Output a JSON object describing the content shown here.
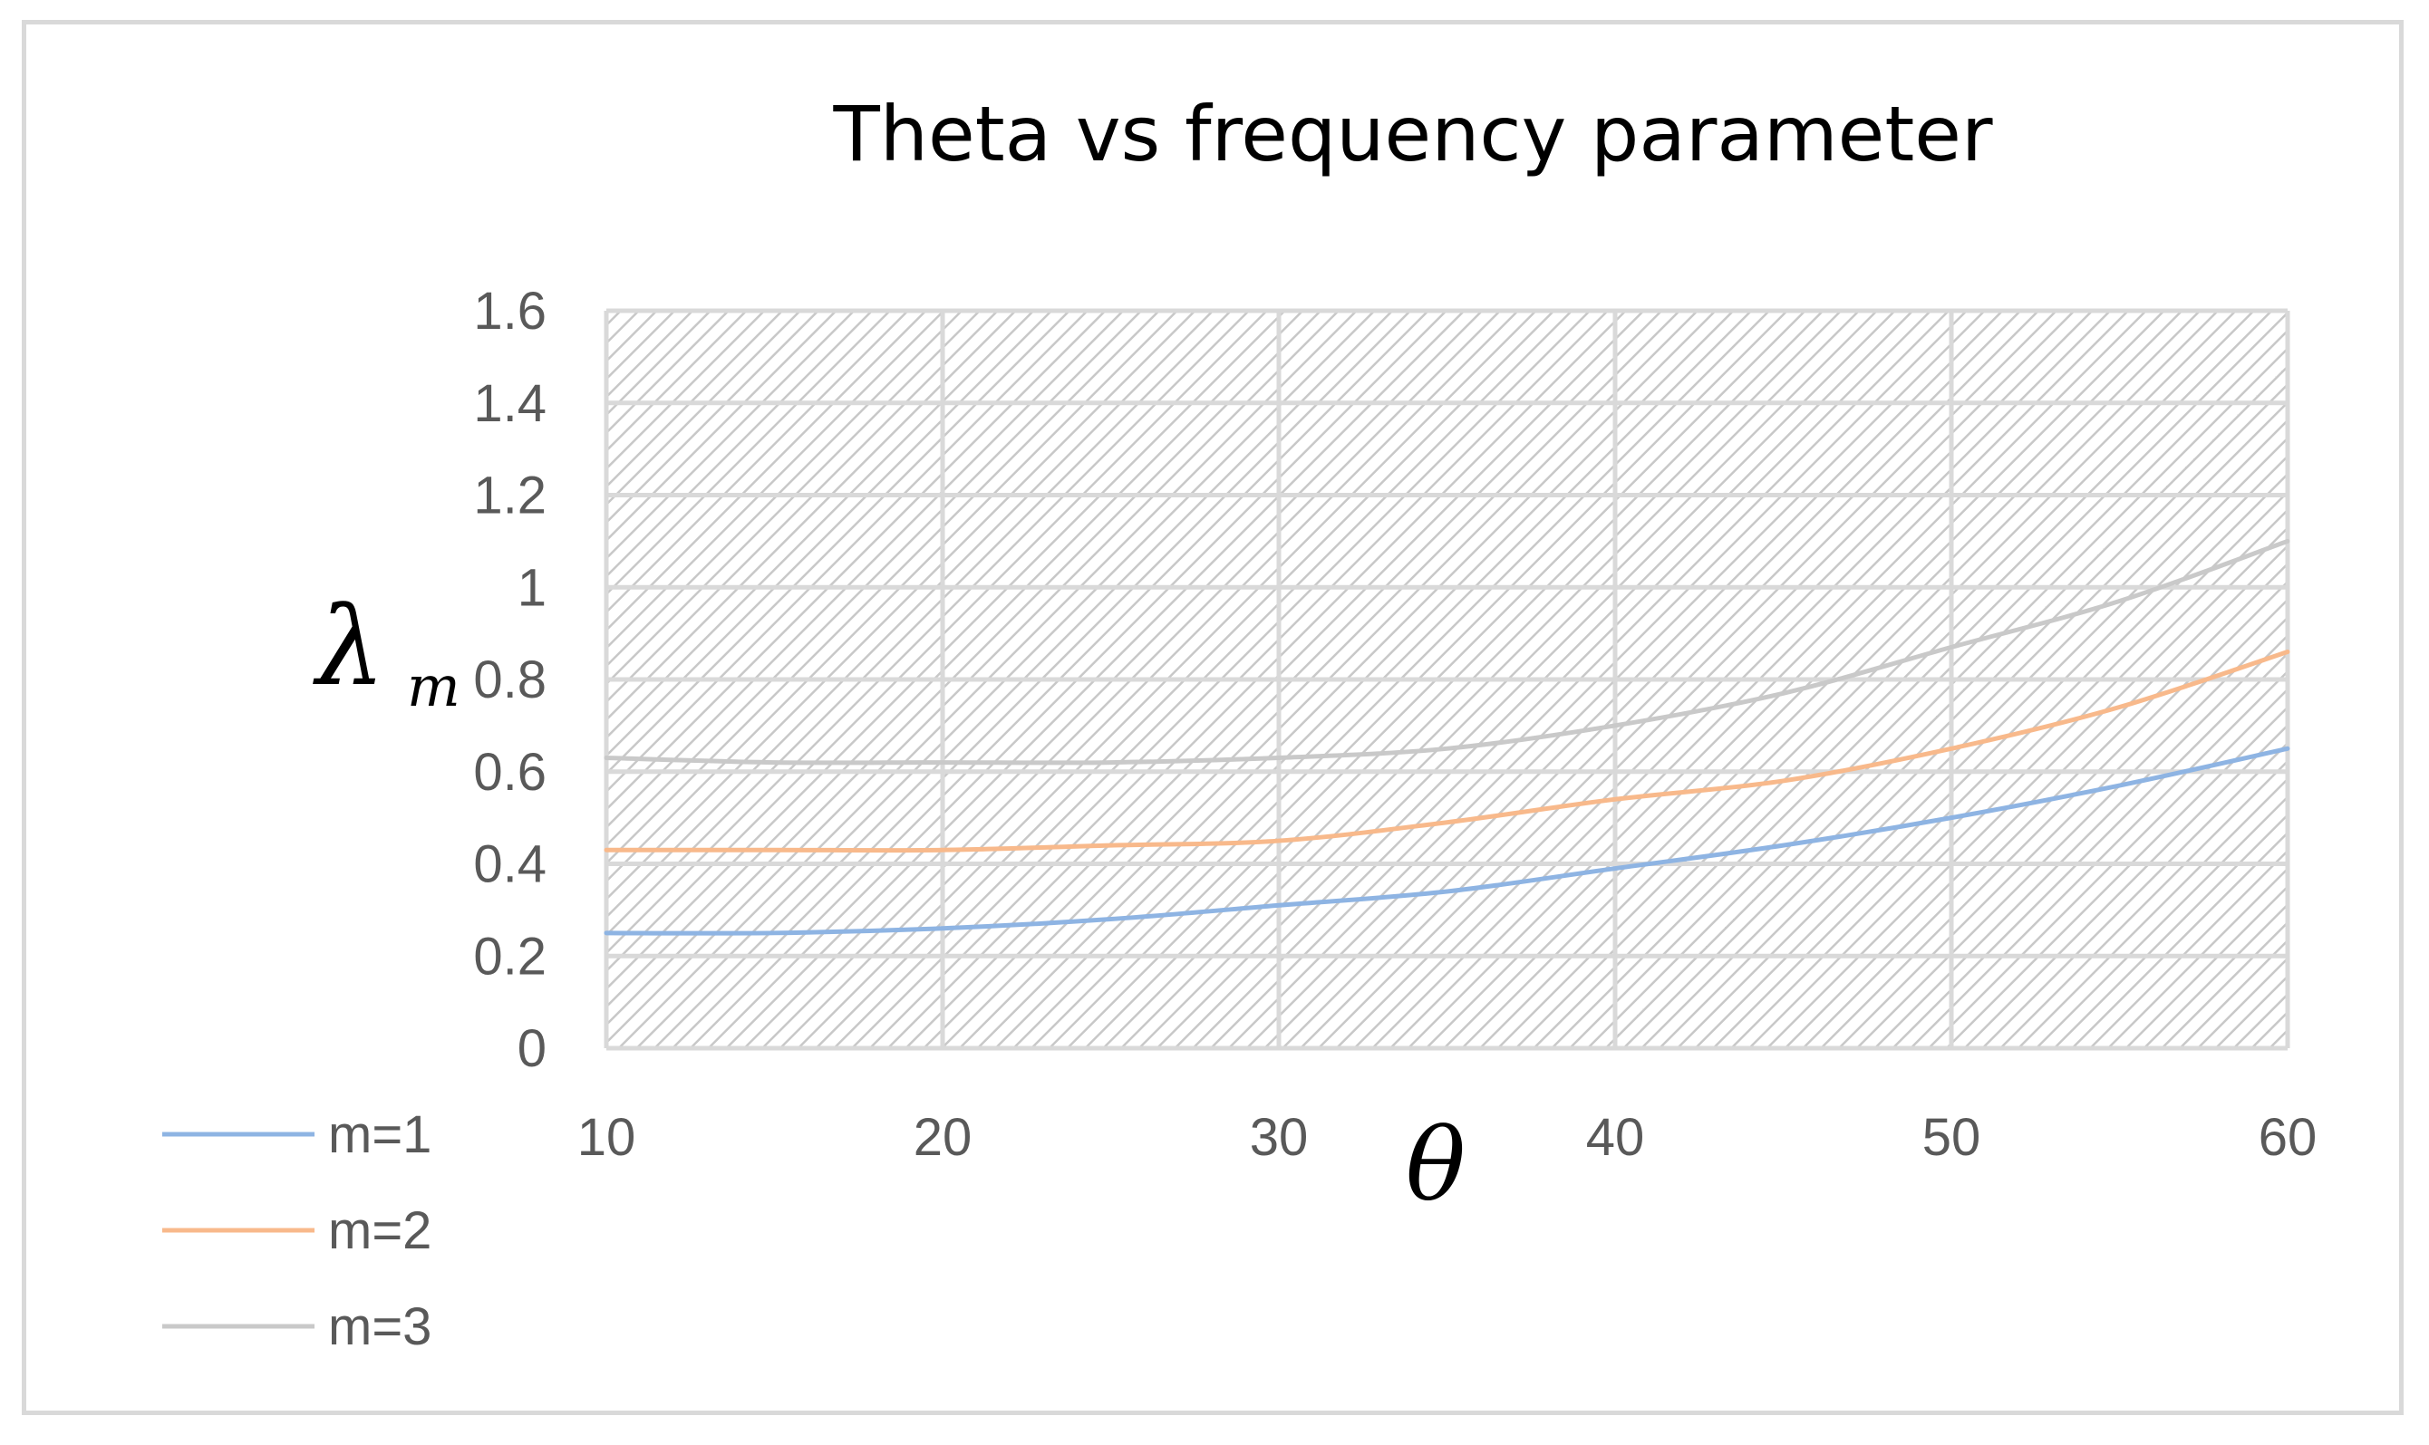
{
  "chart_data": {
    "type": "line",
    "title": "Theta vs frequency parameter",
    "xlabel": "θ",
    "ylabel": "λ",
    "ylabel_subscript": "m",
    "x": [
      10,
      15,
      20,
      25,
      30,
      35,
      40,
      45,
      50,
      55,
      60
    ],
    "x_ticks": [
      "10",
      "20",
      "30",
      "40",
      "50",
      "60"
    ],
    "y_ticks": [
      "0",
      "0.2",
      "0.4",
      "0.6",
      "0.8",
      "1",
      "1.2",
      "1.4",
      "1.6"
    ],
    "xlim": [
      10,
      60
    ],
    "ylim": [
      0,
      1.6
    ],
    "grid": true,
    "plot_background": "hatched",
    "legend_position": "bottom-left",
    "series": [
      {
        "name": "m=1",
        "color": "#8eb4e3",
        "values": [
          0.25,
          0.25,
          0.26,
          0.28,
          0.31,
          0.34,
          0.39,
          0.44,
          0.5,
          0.57,
          0.65
        ]
      },
      {
        "name": "m=2",
        "color": "#f8b98b",
        "values": [
          0.43,
          0.43,
          0.43,
          0.44,
          0.45,
          0.49,
          0.54,
          0.58,
          0.65,
          0.74,
          0.86
        ]
      },
      {
        "name": "m=3",
        "color": "#c9c9c9",
        "values": [
          0.63,
          0.62,
          0.62,
          0.62,
          0.63,
          0.65,
          0.7,
          0.77,
          0.87,
          0.97,
          1.1
        ]
      }
    ]
  }
}
